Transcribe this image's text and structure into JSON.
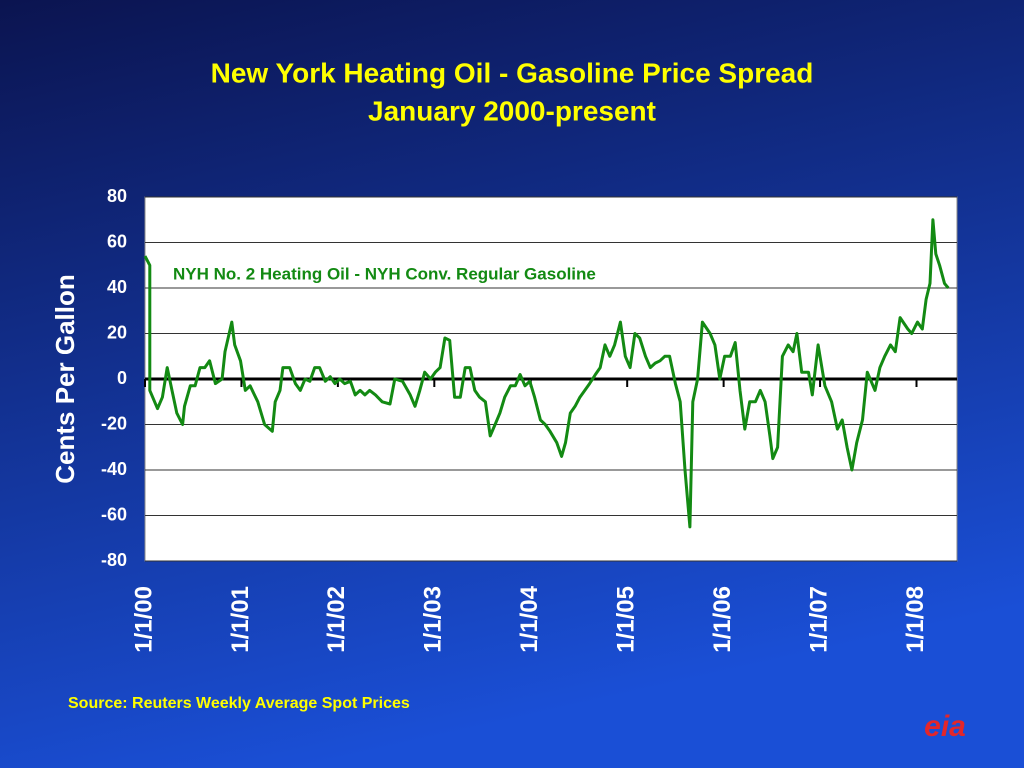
{
  "chart_data": {
    "type": "line",
    "title": "New York Heating Oil - Gasoline Price Spread",
    "subtitle": "January 2000-present",
    "y_label": "Cents Per Gallon",
    "source": "Source: Reuters Weekly Average Spot Prices",
    "logo": "eia",
    "x": [
      2000,
      2000.05,
      2000.05,
      2000.13,
      2000.18,
      2000.23,
      2000.28,
      2000.33,
      2000.39,
      2000.41,
      2000.47,
      2000.52,
      2000.57,
      2000.62,
      2000.67,
      2000.73,
      2000.8,
      2000.83,
      2000.9,
      2000.93,
      2000.99,
      2001.04,
      2001.09,
      2001.17,
      2001.24,
      2001.32,
      2001.35,
      2001.4,
      2001.43,
      2001.5,
      2001.56,
      2001.61,
      2001.66,
      2001.71,
      2001.76,
      2001.81,
      2001.87,
      2001.92,
      2001.97,
      2002.02,
      2002.07,
      2002.13,
      2002.18,
      2002.23,
      2002.28,
      2002.33,
      2002.39,
      2002.46,
      2002.54,
      2002.59,
      2002.67,
      2002.75,
      2002.8,
      2002.85,
      2002.9,
      2002.96,
      2003.01,
      2003.06,
      2003.11,
      2003.16,
      2003.21,
      2003.27,
      2003.32,
      2003.37,
      2003.42,
      2003.47,
      2003.53,
      2003.58,
      2003.63,
      2003.68,
      2003.73,
      2003.79,
      2003.84,
      2003.89,
      2003.94,
      2003.99,
      2004.04,
      2004.1,
      2004.15,
      2004.2,
      2004.27,
      2004.32,
      2004.36,
      2004.41,
      2004.46,
      2004.51,
      2004.56,
      2004.61,
      2004.67,
      2004.72,
      2004.77,
      2004.82,
      2004.87,
      2004.93,
      2004.98,
      2005.03,
      2005.08,
      2005.13,
      2005.19,
      2005.24,
      2005.29,
      2005.34,
      2005.39,
      2005.44,
      2005.5,
      2005.55,
      2005.6,
      2005.65,
      2005.68,
      2005.73,
      2005.78,
      2005.86,
      2005.91,
      2005.96,
      2006.01,
      2006.07,
      2006.12,
      2006.17,
      2006.22,
      2006.27,
      2006.33,
      2006.38,
      2006.43,
      2006.48,
      2006.51,
      2006.56,
      2006.61,
      2006.67,
      2006.72,
      2006.76,
      2006.81,
      2006.88,
      2006.92,
      2006.98,
      2007.05,
      2007.12,
      2007.18,
      2007.23,
      2007.28,
      2007.33,
      2007.38,
      2007.44,
      2007.49,
      2007.57,
      2007.62,
      2007.67,
      2007.73,
      2007.78,
      2007.83,
      2007.91,
      2007.95,
      2008.01,
      2008.06,
      2008.1,
      2008.14,
      2008.17,
      2008.2,
      2008.24,
      2008.29,
      2008.33
    ],
    "series": [
      {
        "name": "NYH No. 2 Heating Oil - NYH Conv. Regular Gasoline",
        "color": "#138a13",
        "values": [
          54,
          50,
          -5,
          -13,
          -8,
          5,
          -5,
          -15,
          -20,
          -12,
          -3,
          -3,
          5,
          5,
          8,
          -2,
          0,
          12,
          25,
          15,
          8,
          -5,
          -3,
          -10,
          -20,
          -23,
          -10,
          -5,
          5,
          5,
          -2,
          -5,
          0,
          -1,
          5,
          5,
          -1,
          1,
          -2,
          0,
          -2,
          -1,
          -7,
          -5,
          -7,
          -5,
          -7,
          -10,
          -11,
          0,
          -1,
          -7,
          -12,
          -5,
          3,
          0,
          3,
          5,
          18,
          17,
          -8,
          -8,
          5,
          5,
          -5,
          -8,
          -10,
          -25,
          -20,
          -15,
          -8,
          -3,
          -3,
          2,
          -3,
          -1,
          -8,
          -18,
          -20,
          -23,
          -28,
          -34,
          -28,
          -15,
          -12,
          -8,
          -5,
          -2,
          2,
          5,
          15,
          10,
          15,
          25,
          10,
          5,
          20,
          18,
          10,
          5,
          7,
          8,
          10,
          10,
          -2,
          -10,
          -40,
          -65,
          -10,
          0,
          25,
          20,
          15,
          0,
          10,
          10,
          16,
          -5,
          -22,
          -10,
          -10,
          -5,
          -10,
          -25,
          -35,
          -30,
          10,
          15,
          12,
          20,
          3,
          3,
          -7,
          15,
          -3,
          -10,
          -22,
          -18,
          -30,
          -40,
          -28,
          -18,
          3,
          -5,
          5,
          10,
          15,
          12,
          27,
          22,
          20,
          25,
          22,
          35,
          42,
          70,
          55,
          50,
          42,
          40
        ]
      }
    ],
    "xlim": [
      2000,
      2008.42
    ],
    "xticks": [
      {
        "value": 2000,
        "label": "1/1/00"
      },
      {
        "value": 2001,
        "label": "1/1/01"
      },
      {
        "value": 2002,
        "label": "1/1/02"
      },
      {
        "value": 2003,
        "label": "1/1/03"
      },
      {
        "value": 2004,
        "label": "1/1/04"
      },
      {
        "value": 2005,
        "label": "1/1/05"
      },
      {
        "value": 2006,
        "label": "1/1/06"
      },
      {
        "value": 2007,
        "label": "1/1/07"
      },
      {
        "value": 2008,
        "label": "1/1/08"
      }
    ],
    "ylim": [
      -80,
      80
    ],
    "yticks": [
      -80,
      -60,
      -40,
      -20,
      0,
      20,
      40,
      60,
      80
    ],
    "grid": true,
    "zero_line": true
  }
}
